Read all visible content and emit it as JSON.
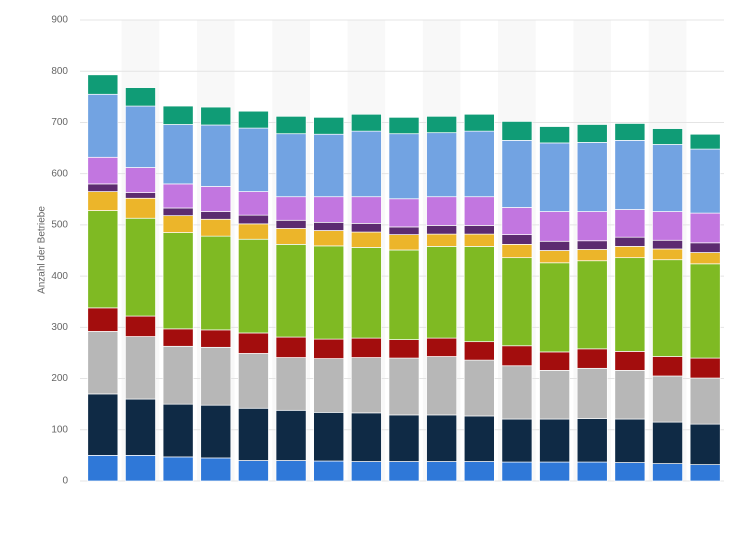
{
  "chart_data": {
    "type": "bar",
    "stacked": true,
    "y_label": "Anzahl der Betriebe",
    "categories": [
      null,
      null,
      null,
      null,
      null,
      null,
      null,
      null,
      null,
      null,
      null,
      null,
      null,
      null,
      null,
      null,
      null
    ],
    "series": [
      {
        "color": "#2f78d8",
        "values": [
          50,
          50,
          47,
          45,
          40,
          40,
          39,
          38,
          38,
          38,
          38,
          37,
          37,
          37,
          36,
          34,
          32
        ]
      },
      {
        "color": "#0f2a45",
        "values": [
          120,
          110,
          103,
          103,
          102,
          98,
          95,
          95,
          91,
          91,
          89,
          84,
          84,
          85,
          85,
          81,
          79
        ]
      },
      {
        "color": "#b7b7b7",
        "values": [
          122,
          122,
          113,
          113,
          107,
          103,
          105,
          108,
          111,
          114,
          109,
          104,
          95,
          98,
          95,
          90,
          90
        ]
      },
      {
        "color": "#a30d0d",
        "values": [
          46,
          40,
          34,
          34,
          40,
          40,
          38,
          38,
          36,
          36,
          36,
          39,
          36,
          38,
          37,
          38,
          39
        ]
      },
      {
        "color": "#7fba23",
        "values": [
          190,
          191,
          188,
          183,
          183,
          181,
          182,
          177,
          175,
          179,
          186,
          172,
          174,
          172,
          183,
          189,
          184
        ]
      },
      {
        "color": "#ecb52a",
        "values": [
          37,
          39,
          33,
          33,
          30,
          31,
          30,
          30,
          30,
          24,
          24,
          26,
          24,
          22,
          22,
          21,
          22
        ]
      },
      {
        "color": "#5c2b70",
        "values": [
          15,
          11,
          15,
          15,
          17,
          16,
          16,
          17,
          15,
          17,
          17,
          19,
          18,
          17,
          18,
          17,
          19
        ]
      },
      {
        "color": "#c276e0",
        "values": [
          52,
          49,
          47,
          49,
          46,
          46,
          50,
          52,
          55,
          56,
          56,
          53,
          58,
          57,
          54,
          56,
          58
        ]
      },
      {
        "color": "#72a3e2",
        "values": [
          123,
          120,
          116,
          120,
          124,
          123,
          122,
          128,
          127,
          125,
          128,
          131,
          134,
          135,
          135,
          131,
          125
        ]
      },
      {
        "color": "#109c76",
        "values": [
          38,
          36,
          36,
          35,
          33,
          34,
          33,
          33,
          32,
          32,
          33,
          37,
          32,
          35,
          33,
          31,
          29
        ]
      }
    ],
    "ylim": [
      0,
      900
    ],
    "yticks": [
      0,
      100,
      200,
      300,
      400,
      500,
      600,
      700,
      800,
      900
    ],
    "grid": true,
    "striped_background": true
  }
}
